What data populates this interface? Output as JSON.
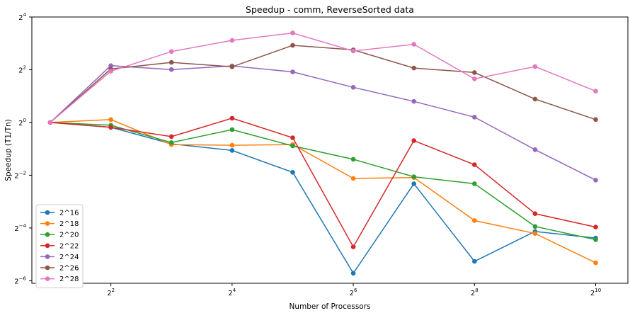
{
  "chart_data": {
    "type": "line",
    "title": "Speedup - comm, ReverseSorted data",
    "xlabel": "Number of Processors",
    "ylabel": "Speedup (T1/Tn)",
    "x_scale": "log2",
    "y_scale": "log2",
    "xlim": [
      1.62,
      1480
    ],
    "ylim": [
      0.0146,
      16
    ],
    "x_ticks": [
      {
        "value": 4,
        "base": "2",
        "exp": "2"
      },
      {
        "value": 16,
        "base": "2",
        "exp": "4"
      },
      {
        "value": 64,
        "base": "2",
        "exp": "6"
      },
      {
        "value": 256,
        "base": "2",
        "exp": "8"
      },
      {
        "value": 1024,
        "base": "2",
        "exp": "10"
      }
    ],
    "y_ticks": [
      {
        "value": 16,
        "base": "2",
        "exp": "4"
      },
      {
        "value": 4,
        "base": "2",
        "exp": "2"
      },
      {
        "value": 1,
        "base": "2",
        "exp": "0"
      },
      {
        "value": 0.25,
        "base": "2",
        "exp": "−2"
      },
      {
        "value": 0.0625,
        "base": "2",
        "exp": "−4"
      },
      {
        "value": 0.015625,
        "base": "2",
        "exp": "−6"
      }
    ],
    "grid": false,
    "legend_position": "lower-left",
    "x": [
      2,
      4,
      8,
      16,
      32,
      64,
      128,
      256,
      512,
      1024
    ],
    "series": [
      {
        "name": "2^16",
        "color": "#1f77b4",
        "values": [
          1.0,
          0.88,
          0.57,
          0.48,
          0.27,
          0.019,
          0.2,
          0.026,
          0.057,
          0.048
        ]
      },
      {
        "name": "2^18",
        "color": "#ff7f0e",
        "values": [
          1.0,
          1.08,
          0.56,
          0.55,
          0.56,
          0.23,
          0.235,
          0.076,
          0.054,
          0.025
        ]
      },
      {
        "name": "2^20",
        "color": "#2ca02c",
        "values": [
          1.0,
          0.93,
          0.59,
          0.83,
          0.54,
          0.38,
          0.24,
          0.2,
          0.065,
          0.046
        ]
      },
      {
        "name": "2^22",
        "color": "#d62728",
        "values": [
          1.0,
          0.88,
          0.69,
          1.12,
          0.67,
          0.038,
          0.62,
          0.33,
          0.091,
          0.064
        ]
      },
      {
        "name": "2^24",
        "color": "#9467bd",
        "values": [
          1.0,
          4.45,
          4.02,
          4.42,
          3.78,
          2.52,
          1.74,
          1.15,
          0.49,
          0.22
        ]
      },
      {
        "name": "2^26",
        "color": "#8c564b",
        "values": [
          1.0,
          4.08,
          4.85,
          4.32,
          7.6,
          6.75,
          4.18,
          3.72,
          1.85,
          1.08
        ]
      },
      {
        "name": "2^28",
        "color": "#e377c2",
        "values": [
          1.0,
          3.85,
          6.45,
          8.65,
          10.5,
          6.55,
          7.8,
          3.15,
          4.35,
          2.28
        ]
      }
    ]
  }
}
